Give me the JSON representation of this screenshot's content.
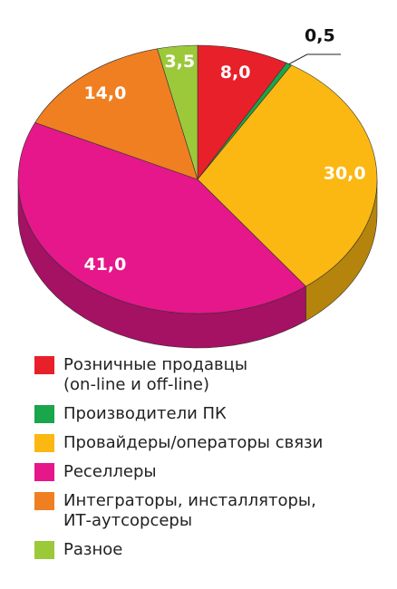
{
  "chart_data": {
    "type": "pie",
    "categories": [
      "Розничные продавцы\n(on-line и off-line)",
      "Производители ПК",
      "Провайдеры/операторы связи",
      "Реселлеры",
      "Интеграторы, инсталляторы,\nИТ-аутсорсеры",
      "Разное"
    ],
    "values": [
      8.0,
      0.5,
      30.0,
      41.0,
      14.0,
      3.5
    ],
    "value_labels": [
      "8,0",
      "0,5",
      "30,0",
      "41,0",
      "14,0",
      "3,5"
    ],
    "colors": [
      "#e8202a",
      "#1aa64a",
      "#fbb812",
      "#e5178a",
      "#f07f22",
      "#9cc93a"
    ]
  }
}
